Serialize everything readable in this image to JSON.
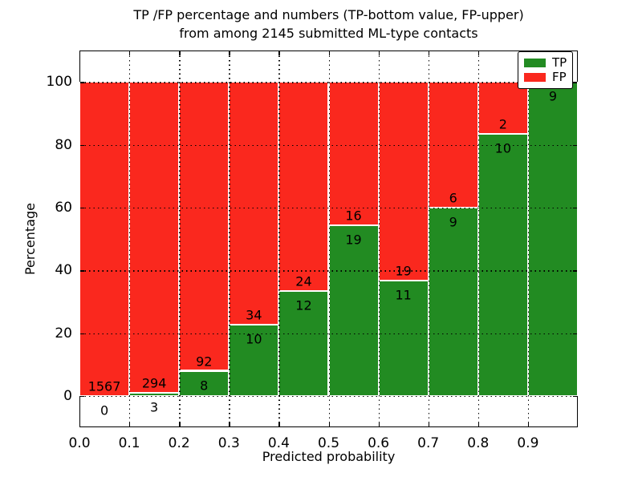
{
  "figure": {
    "title_line1": "TP /FP percentage and numbers (TP-bottom value, FP-upper)",
    "title_line2": "from among 2145 submitted ML-type contacts",
    "xlabel": "Predicted probability",
    "ylabel": "Percentage"
  },
  "legend": {
    "position": "upper right",
    "items": [
      {
        "label": "TP",
        "color": "#228b22"
      },
      {
        "label": "FP",
        "color": "#fa281e"
      }
    ]
  },
  "chart_data": {
    "type": "bar",
    "stacked": true,
    "normalized_to_percent": true,
    "title": "TP /FP percentage and numbers (TP-bottom value, FP-upper) from among 2145 submitted ML-type contacts",
    "xlabel": "Predicted probability",
    "ylabel": "Percentage",
    "total_contacts": 2145,
    "xlim": [
      0.0,
      1.0
    ],
    "ylim": [
      -10,
      110
    ],
    "bin_edges": [
      0.0,
      0.1,
      0.2,
      0.3,
      0.4,
      0.5,
      0.6,
      0.7,
      0.8,
      0.9,
      1.0
    ],
    "x_tick_labels": [
      "0.0",
      "0.1",
      "0.2",
      "0.3",
      "0.4",
      "0.5",
      "0.6",
      "0.7",
      "0.8",
      "0.9"
    ],
    "y_ticks": [
      0,
      20,
      40,
      60,
      80,
      100
    ],
    "grid": "dotted",
    "series": [
      {
        "name": "TP",
        "color": "#228b22",
        "counts": [
          0,
          3,
          8,
          10,
          12,
          19,
          11,
          9,
          10,
          9
        ]
      },
      {
        "name": "FP",
        "color": "#fa281e",
        "counts": [
          1567,
          294,
          92,
          34,
          24,
          16,
          19,
          6,
          2,
          0
        ]
      }
    ],
    "tp_percent_heights": [
      0.0,
      1.0,
      8.0,
      22.7,
      33.3,
      54.3,
      36.7,
      60.0,
      83.3,
      100.0
    ]
  }
}
